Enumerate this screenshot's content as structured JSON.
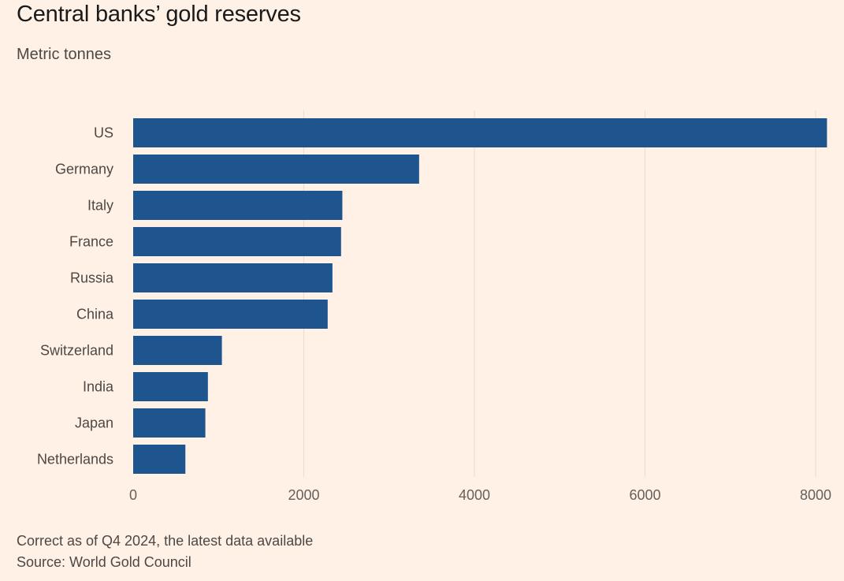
{
  "header": {
    "title": "Central banks’ gold reserves",
    "subtitle": "Metric tonnes"
  },
  "footer": {
    "note": "Correct as of Q4 2024, the latest data available",
    "source": "Source: World Gold Council"
  },
  "chart_data": {
    "type": "bar",
    "orientation": "horizontal",
    "title": "Central banks’ gold reserves",
    "subtitle": "Metric tonnes",
    "categories": [
      "US",
      "Germany",
      "Italy",
      "France",
      "Russia",
      "China",
      "Switzerland",
      "India",
      "Japan",
      "Netherlands"
    ],
    "values": [
      8133,
      3352,
      2452,
      2437,
      2336,
      2280,
      1040,
      876,
      846,
      612
    ],
    "xlim": [
      0,
      8200
    ],
    "xticks": [
      0,
      2000,
      4000,
      6000,
      8000
    ],
    "grid": true,
    "colors": {
      "bar": "#1F558E",
      "grid": "#EADCCF",
      "background": "#FFF1E5"
    }
  }
}
